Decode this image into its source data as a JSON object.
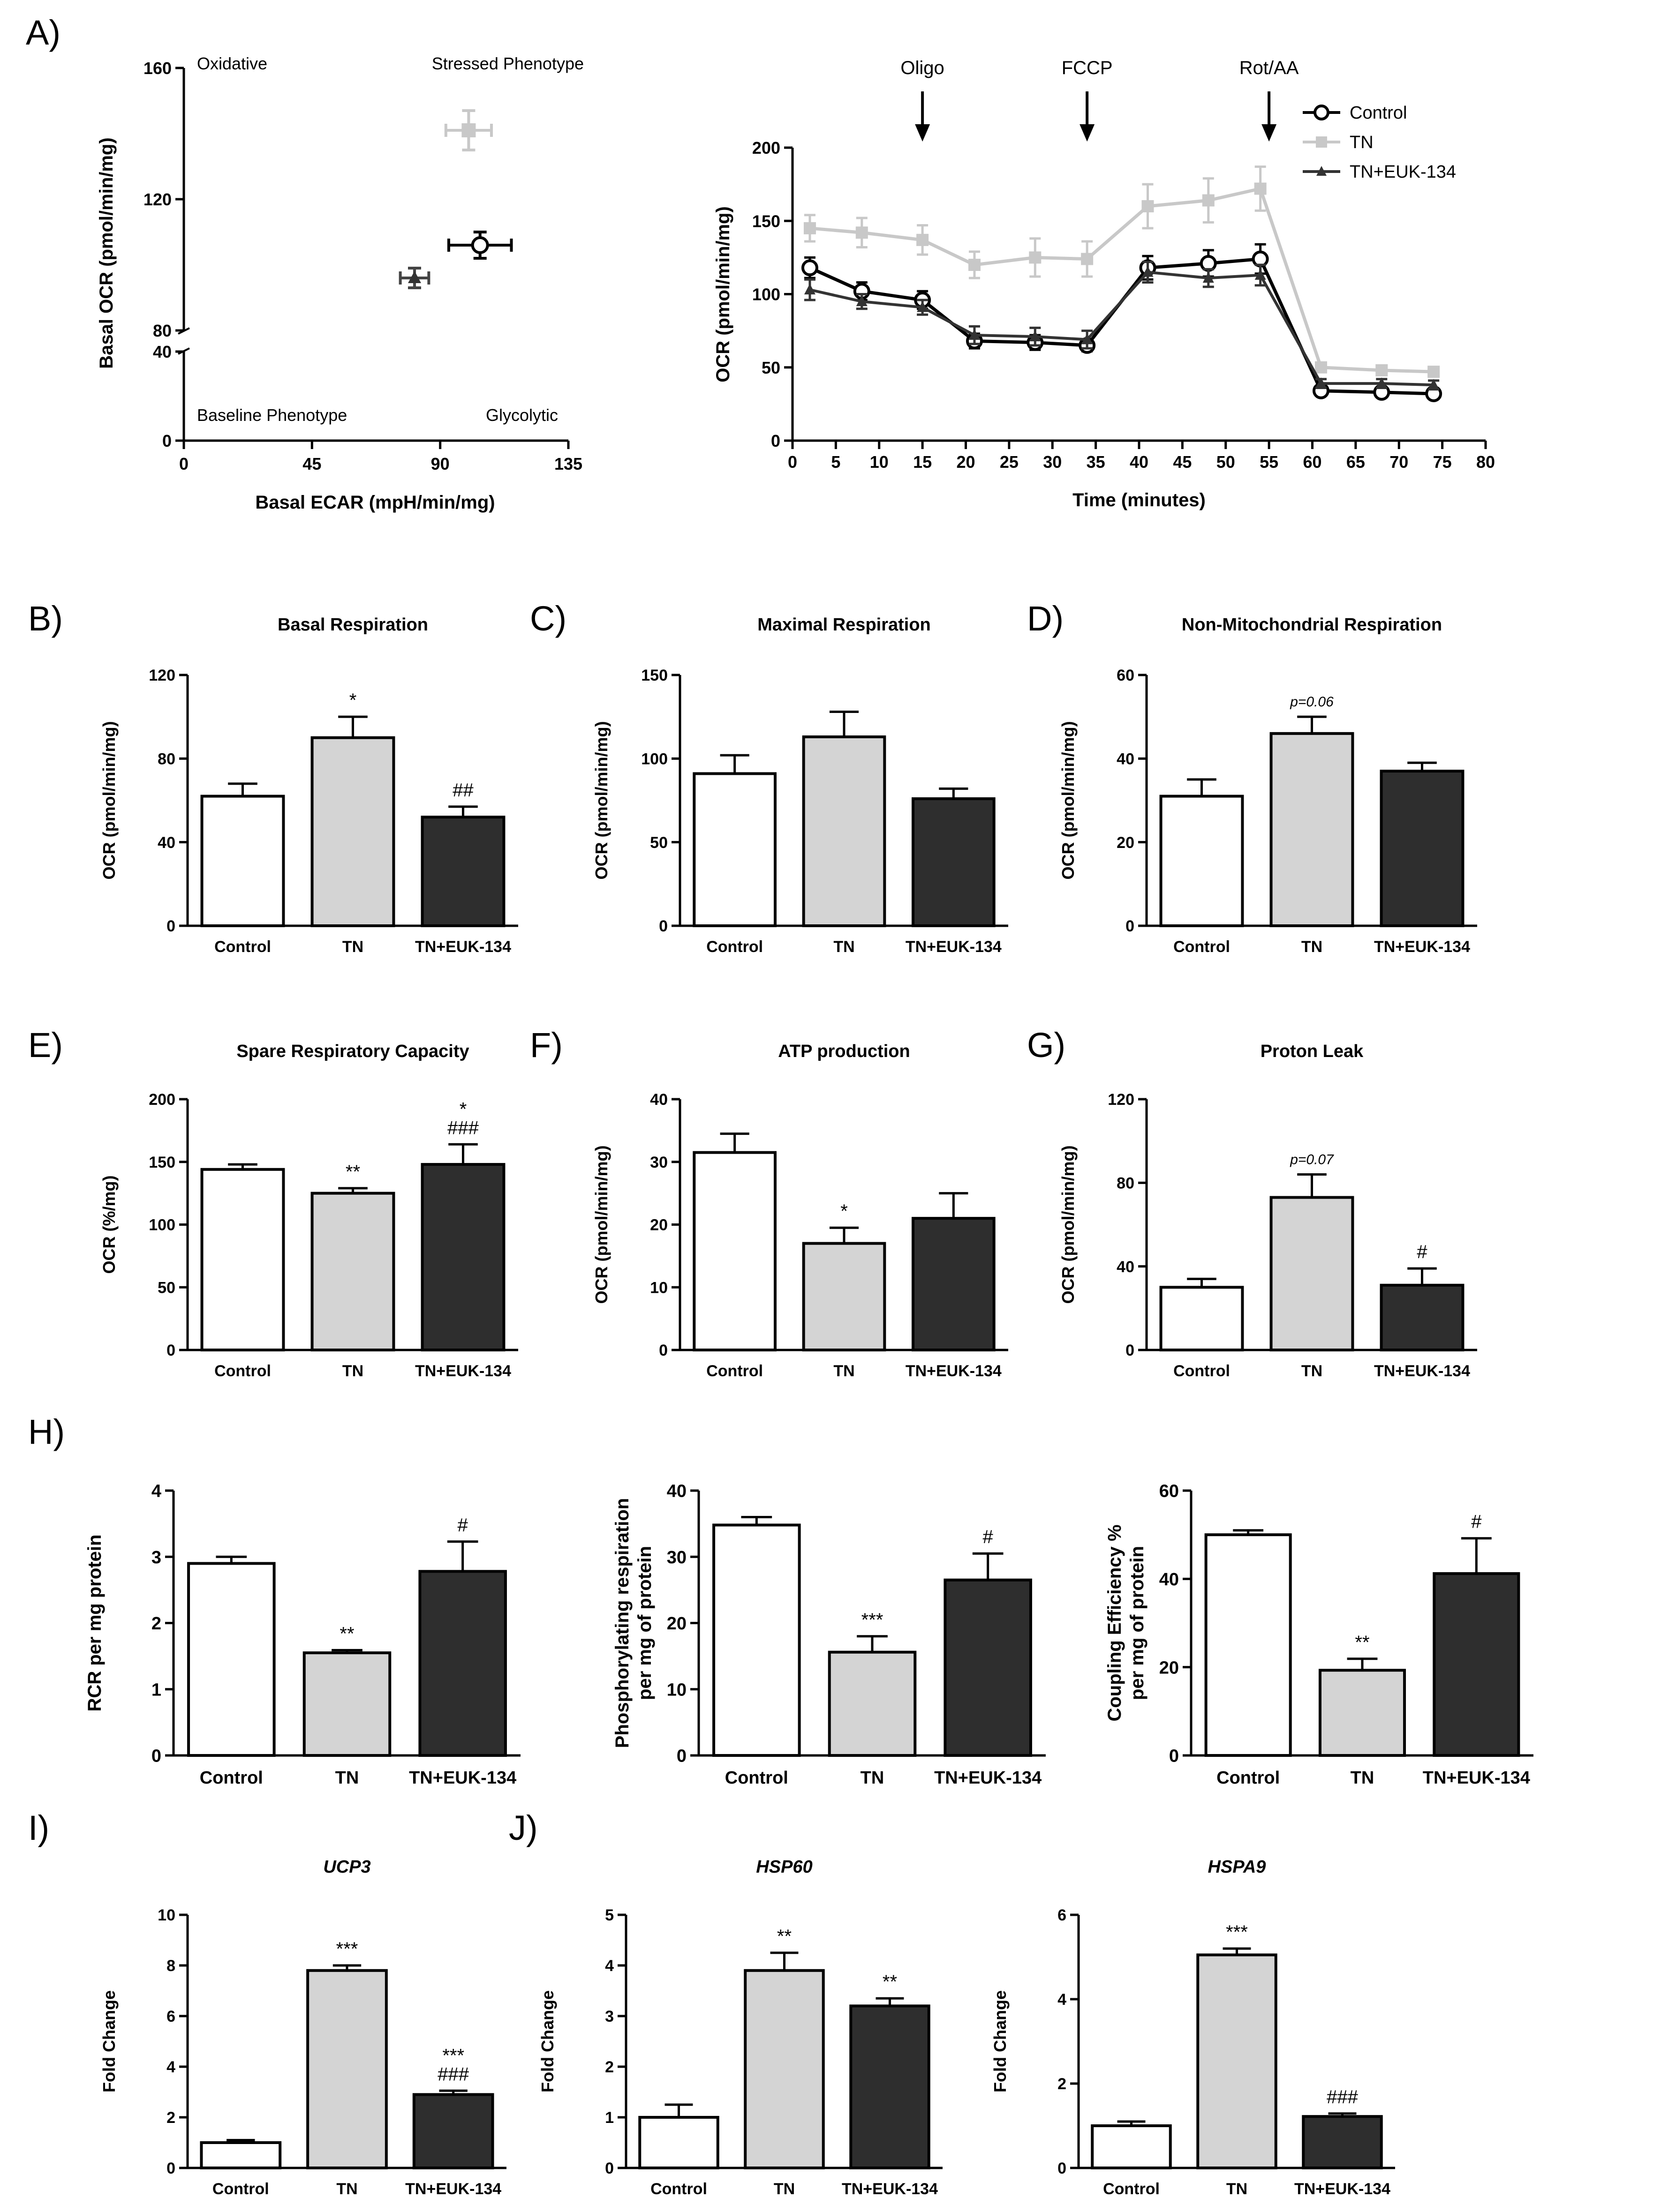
{
  "colors": {
    "control": "#ffffff",
    "tn": "#d4d4d4",
    "euk": "#2e2e2e",
    "tn_line": "#c8c8c8",
    "axis": "#000000"
  },
  "groups": [
    "Control",
    "TN",
    "TN+EUK-134"
  ],
  "chart_data": [
    {
      "id": "A1",
      "panel": "A)",
      "type": "scatter",
      "xlabel": "Basal ECAR (mpH/min/mg)",
      "ylabel": "Basal OCR (pmol/min/mg)",
      "xlim": [
        0,
        135
      ],
      "xticks": [
        0,
        45,
        90,
        135
      ],
      "ybreak": {
        "lower": [
          0,
          40
        ],
        "upper": [
          80,
          160
        ]
      },
      "yticks": [
        0,
        40,
        80,
        120,
        160
      ],
      "quadrant_labels": [
        "Oxidative",
        "Stressed Phenotype",
        "Baseline Phenotype",
        "Glycolytic"
      ],
      "points": [
        {
          "group": "Control",
          "x": 104,
          "y": 106,
          "xerr": 11,
          "yerr": 4,
          "marker": "open-circle"
        },
        {
          "group": "TN",
          "x": 100,
          "y": 141,
          "xerr": 8,
          "yerr": 6,
          "marker": "square"
        },
        {
          "group": "TN+EUK-134",
          "x": 81,
          "y": 96,
          "xerr": 5,
          "yerr": 3,
          "marker": "triangle"
        }
      ]
    },
    {
      "id": "A2",
      "type": "line",
      "xlabel": "Time (minutes)",
      "ylabel": "OCR (pmol/min/mg)",
      "xlim": [
        0,
        80
      ],
      "xticks": [
        0,
        5,
        10,
        15,
        20,
        25,
        30,
        35,
        40,
        45,
        50,
        55,
        60,
        65,
        70,
        75,
        80
      ],
      "ylim": [
        0,
        200
      ],
      "yticks": [
        0,
        50,
        100,
        150,
        200
      ],
      "injections": [
        {
          "label": "Oligo",
          "x": 15
        },
        {
          "label": "FCCP",
          "x": 34
        },
        {
          "label": "Rot/AA",
          "x": 55
        }
      ],
      "x": [
        2,
        8,
        15,
        21,
        28,
        34,
        41,
        48,
        54,
        61,
        68,
        74
      ],
      "series": [
        {
          "name": "Control",
          "values": [
            118,
            102,
            96,
            68,
            67,
            65,
            118,
            121,
            124,
            34,
            33,
            32
          ],
          "err": [
            7,
            6,
            6,
            5,
            5,
            4,
            8,
            9,
            10,
            3,
            2,
            2
          ]
        },
        {
          "name": "TN",
          "values": [
            145,
            142,
            137,
            120,
            125,
            124,
            160,
            164,
            172,
            50,
            48,
            47
          ],
          "err": [
            9,
            10,
            10,
            9,
            13,
            12,
            15,
            15,
            15,
            3,
            3,
            2
          ]
        },
        {
          "name": "TN+EUK-134",
          "values": [
            103,
            95,
            91,
            72,
            71,
            69,
            115,
            111,
            113,
            39,
            39,
            38
          ],
          "err": [
            7,
            5,
            5,
            6,
            6,
            6,
            7,
            6,
            7,
            3,
            3,
            3
          ]
        }
      ]
    },
    {
      "id": "B",
      "panel": "B)",
      "type": "bar",
      "title": "Basal Respiration",
      "ylabel": "OCR (pmol/min/mg)",
      "ylim": [
        0,
        120
      ],
      "yticks": [
        0,
        40,
        80,
        120
      ],
      "categories": [
        "Control",
        "TN",
        "TN+EUK-134"
      ],
      "values": [
        62,
        90,
        52
      ],
      "errors": [
        6,
        10,
        5
      ],
      "annotations": [
        "",
        "*",
        "##"
      ]
    },
    {
      "id": "C",
      "panel": "C)",
      "type": "bar",
      "title": "Maximal Respiration",
      "ylabel": "OCR (pmol/min/mg)",
      "ylim": [
        0,
        150
      ],
      "yticks": [
        0,
        50,
        100,
        150
      ],
      "categories": [
        "Control",
        "TN",
        "TN+EUK-134"
      ],
      "values": [
        91,
        113,
        76
      ],
      "errors": [
        11,
        15,
        6
      ],
      "annotations": [
        "",
        "",
        ""
      ]
    },
    {
      "id": "D",
      "panel": "D)",
      "type": "bar",
      "title": "Non-Mitochondrial Respiration",
      "ylabel": "OCR (pmol/min/mg)",
      "ylim": [
        0,
        60
      ],
      "yticks": [
        0,
        20,
        40,
        60
      ],
      "categories": [
        "Control",
        "TN",
        "TN+EUK-134"
      ],
      "values": [
        31,
        46,
        37
      ],
      "errors": [
        4,
        4,
        2
      ],
      "annotations": [
        "",
        "p=0.06",
        ""
      ]
    },
    {
      "id": "E",
      "panel": "E)",
      "type": "bar",
      "title": "Spare Respiratory Capacity",
      "ylabel": "OCR (%/mg)",
      "ylim": [
        0,
        200
      ],
      "yticks": [
        0,
        50,
        100,
        150,
        200
      ],
      "categories": [
        "Control",
        "TN",
        "TN+EUK-134"
      ],
      "values": [
        144,
        125,
        148
      ],
      "errors": [
        4,
        4,
        16
      ],
      "annotations": [
        "",
        "**",
        "*|###"
      ]
    },
    {
      "id": "F",
      "panel": "F)",
      "type": "bar",
      "title": "ATP production",
      "ylabel": "OCR (pmol/min/mg)",
      "ylim": [
        0,
        40
      ],
      "yticks": [
        0,
        10,
        20,
        30,
        40
      ],
      "categories": [
        "Control",
        "TN",
        "TN+EUK-134"
      ],
      "values": [
        31.5,
        17,
        21
      ],
      "errors": [
        3,
        2.5,
        4
      ],
      "annotations": [
        "",
        "*",
        ""
      ]
    },
    {
      "id": "G",
      "panel": "G)",
      "type": "bar",
      "title": "Proton Leak",
      "ylabel": "OCR (pmol/min/mg)",
      "ylim": [
        0,
        120
      ],
      "yticks": [
        0,
        40,
        80,
        120
      ],
      "categories": [
        "Control",
        "TN",
        "TN+EUK-134"
      ],
      "values": [
        30,
        73,
        31
      ],
      "errors": [
        4,
        11,
        8
      ],
      "annotations": [
        "",
        "p=0.07",
        "#"
      ]
    },
    {
      "id": "H1",
      "panel": "H)",
      "type": "bar",
      "ylabel": "RCR per mg protein",
      "ylim": [
        0,
        4
      ],
      "yticks": [
        0,
        1,
        2,
        3,
        4
      ],
      "categories": [
        "Control",
        "TN",
        "TN+EUK-134"
      ],
      "values": [
        2.9,
        1.55,
        2.78
      ],
      "errors": [
        0.1,
        0.04,
        0.45
      ],
      "annotations": [
        "",
        "**",
        "#"
      ]
    },
    {
      "id": "H2",
      "type": "bar",
      "ylabel": "Phosphorylating respiration|per mg of protein",
      "ylim": [
        0,
        40
      ],
      "yticks": [
        0,
        10,
        20,
        30,
        40
      ],
      "categories": [
        "Control",
        "TN",
        "TN+EUK-134"
      ],
      "values": [
        34.8,
        15.6,
        26.5
      ],
      "errors": [
        1.2,
        2.4,
        4
      ],
      "annotations": [
        "",
        "***",
        "#"
      ]
    },
    {
      "id": "H3",
      "type": "bar",
      "ylabel": "Coupling Efficiency %|per mg of protein",
      "ylim": [
        0,
        60
      ],
      "yticks": [
        0,
        20,
        40,
        60
      ],
      "categories": [
        "Control",
        "TN",
        "TN+EUK-134"
      ],
      "values": [
        50,
        19.3,
        41.2
      ],
      "errors": [
        1,
        2.6,
        8
      ],
      "annotations": [
        "",
        "**",
        "#"
      ]
    },
    {
      "id": "I",
      "panel": "I)",
      "type": "bar",
      "title": "UCP3",
      "title_italic": true,
      "ylabel": "Fold Change",
      "ylim": [
        0,
        10
      ],
      "yticks": [
        0,
        2,
        4,
        6,
        8,
        10
      ],
      "categories": [
        "Control",
        "TN",
        "TN+EUK-134"
      ],
      "values": [
        1,
        7.8,
        2.9
      ],
      "errors": [
        0.1,
        0.2,
        0.15
      ],
      "annotations": [
        "",
        "***",
        "***|###"
      ]
    },
    {
      "id": "J1",
      "panel": "J)",
      "type": "bar",
      "title": "HSP60",
      "title_italic": true,
      "ylabel": "Fold Change",
      "ylim": [
        0,
        5
      ],
      "yticks": [
        0,
        1,
        2,
        3,
        4,
        5
      ],
      "categories": [
        "Control",
        "TN",
        "TN+EUK-134"
      ],
      "values": [
        1,
        3.9,
        3.2
      ],
      "errors": [
        0.25,
        0.35,
        0.15
      ],
      "annotations": [
        "",
        "**",
        "**"
      ]
    },
    {
      "id": "J2",
      "type": "bar",
      "title": "HSPA9",
      "title_italic": true,
      "ylabel": "Fold Change",
      "ylim": [
        0,
        6
      ],
      "yticks": [
        0,
        2,
        4,
        6
      ],
      "categories": [
        "Control",
        "TN",
        "TN+EUK-134"
      ],
      "values": [
        1,
        5.05,
        1.22
      ],
      "errors": [
        0.1,
        0.15,
        0.07
      ],
      "annotations": [
        "",
        "***",
        "###"
      ]
    }
  ]
}
